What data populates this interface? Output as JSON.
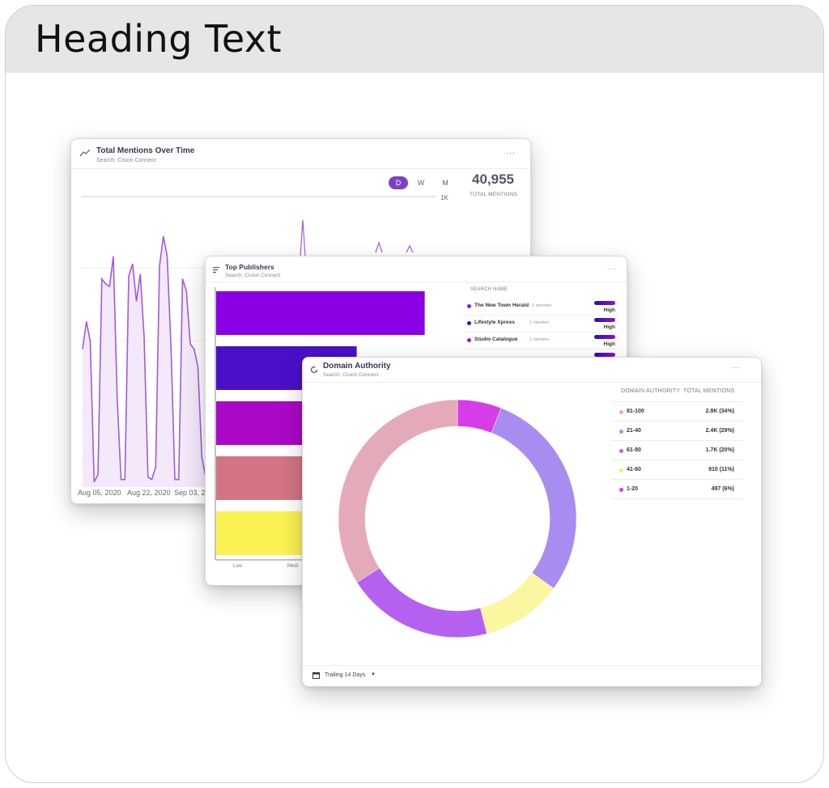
{
  "heading": "Heading Text",
  "mentions_card": {
    "title": "Total Mentions Over Time",
    "subtitle": "Search: Cision Connect",
    "menu": "···",
    "toggles": [
      "D",
      "W",
      "M"
    ],
    "active_toggle": "D",
    "total_value": "40,955",
    "total_label": "TOTAL MENTIONS",
    "y_tick": "1K",
    "x_ticks": [
      "Aug 05, 2020",
      "Aug 22, 2020",
      "Sep 03, 2"
    ],
    "line_color": "#a25ae0",
    "fill_color": "#f3e9fb"
  },
  "publishers_card": {
    "title": "Top Publishers",
    "subtitle": "Search: Cision Connect",
    "menu": "···",
    "list_header": "SEARCH NAME",
    "rows": [
      {
        "name": "The New Town Herald",
        "count": "1 mention",
        "level": "High",
        "color": "#8a16e0"
      },
      {
        "name": "Lifestyle Xpress",
        "count": "1 mention",
        "level": "High",
        "color": "#3a0fc0"
      },
      {
        "name": "Studio Catalogue",
        "count": "1 mention",
        "level": "High",
        "color": "#a611c9"
      }
    ],
    "x_ticks": [
      "Low",
      "Medi"
    ]
  },
  "domain_card": {
    "title": "Domain Authority",
    "subtitle": "Search: Cision Connect",
    "menu": "···",
    "col1": "DOMAIN AUTHORITY",
    "col2": "TOTAL MENTIONS",
    "rows": [
      {
        "range": "81-100",
        "value": "2.8K (34%)",
        "color": "#e4aab9"
      },
      {
        "range": "21-40",
        "value": "2.4K (29%)",
        "color": "#a98cf0"
      },
      {
        "range": "61-80",
        "value": "1.7K (20%)",
        "color": "#b461ef"
      },
      {
        "range": "41-60",
        "value": "910 (11%)",
        "color": "#fbf6a0"
      },
      {
        "range": "1-20",
        "value": "497 (6%)",
        "color": "#d63ce8"
      }
    ],
    "footer": "Trailing 14 Days",
    "footer_caret": "▼"
  },
  "chart_data": [
    {
      "type": "area",
      "title": "Total Mentions Over Time",
      "x_ticks": [
        "Aug 05, 2020",
        "Aug 22, 2020",
        "Sep 03, 2"
      ],
      "y_ticks": [
        "1K"
      ],
      "series": [
        {
          "values": [
            0.55,
            0.66,
            0.58,
            0.02,
            0.05,
            0.83,
            0.81,
            0.8,
            0.92,
            0.35,
            0.03,
            0.03,
            0.84,
            0.89,
            0.74,
            0.85,
            0.6,
            0.04,
            0.03,
            0.08,
            0.88,
            1.0,
            0.92,
            0.55,
            0.03,
            0.03,
            0.83,
            0.78,
            0.57,
            0.55,
            0.48,
            0.12,
            0.04
          ]
        }
      ]
    },
    {
      "type": "bar",
      "title": "Top Publishers",
      "orientation": "horizontal",
      "values": [
        0.92,
        0.62,
        0.49,
        0.52,
        0.45
      ],
      "colors": [
        "#8a00e4",
        "#4a10c8",
        "#ab08c8",
        "#d27483",
        "#fcf153"
      ]
    },
    {
      "type": "pie",
      "title": "Domain Authority",
      "donut": true,
      "slices": [
        {
          "label": "1-20",
          "value": 6,
          "color": "#d63ce8"
        },
        {
          "label": "21-40",
          "value": 29,
          "color": "#a98cf0"
        },
        {
          "label": "41-60",
          "value": 11,
          "color": "#fbf6a0"
        },
        {
          "label": "61-80",
          "value": 20,
          "color": "#b461ef"
        },
        {
          "label": "81-100",
          "value": 34,
          "color": "#e4aab9"
        }
      ]
    }
  ]
}
